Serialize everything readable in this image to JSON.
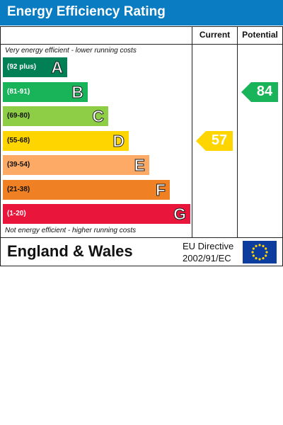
{
  "header": {
    "title": "Energy Efficiency Rating"
  },
  "columns": {
    "current": "Current",
    "potential": "Potential"
  },
  "notes": {
    "top": "Very energy efficient - lower running costs",
    "bottom": "Not energy efficient - higher running costs"
  },
  "footer": {
    "region": "England & Wales",
    "directive_line1": "EU Directive",
    "directive_line2": "2002/91/EC",
    "flag": "eu-flag-icon"
  },
  "chart_data": {
    "type": "bar",
    "bands": [
      {
        "letter": "A",
        "range": "(92 plus)",
        "color": "#008054"
      },
      {
        "letter": "B",
        "range": "(81-91)",
        "color": "#19b459"
      },
      {
        "letter": "C",
        "range": "(69-80)",
        "color": "#8dce46"
      },
      {
        "letter": "D",
        "range": "(55-68)",
        "color": "#ffd500"
      },
      {
        "letter": "E",
        "range": "(39-54)",
        "color": "#fcaa65"
      },
      {
        "letter": "F",
        "range": "(21-38)",
        "color": "#ef8023"
      },
      {
        "letter": "G",
        "range": "(1-20)",
        "color": "#e9153b"
      }
    ],
    "current": {
      "value": 57,
      "band": "D",
      "color": "#ffd500"
    },
    "potential": {
      "value": 84,
      "band": "B",
      "color": "#19b459"
    }
  }
}
